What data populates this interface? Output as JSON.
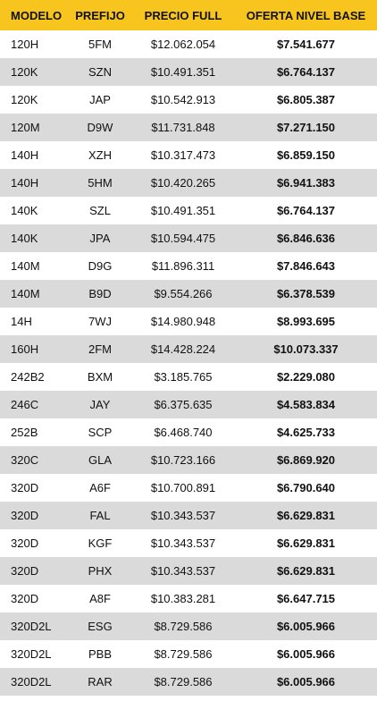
{
  "table": {
    "header": [
      "MODELO",
      "PREFIJO",
      "PRECIO FULL",
      "OFERTA NIVEL BASE"
    ],
    "rows": [
      [
        "120H",
        "5FM",
        "$12.062.054",
        "$7.541.677"
      ],
      [
        "120K",
        "SZN",
        "$10.491.351",
        "$6.764.137"
      ],
      [
        "120K",
        "JAP",
        "$10.542.913",
        "$6.805.387"
      ],
      [
        "120M",
        "D9W",
        "$11.731.848",
        "$7.271.150"
      ],
      [
        "140H",
        "XZH",
        "$10.317.473",
        "$6.859.150"
      ],
      [
        "140H",
        "5HM",
        "$10.420.265",
        "$6.941.383"
      ],
      [
        "140K",
        "SZL",
        "$10.491.351",
        "$6.764.137"
      ],
      [
        "140K",
        "JPA",
        "$10.594.475",
        "$6.846.636"
      ],
      [
        "140M",
        "D9G",
        "$11.896.311",
        "$7.846.643"
      ],
      [
        "140M",
        "B9D",
        "$9.554.266",
        "$6.378.539"
      ],
      [
        "14H",
        "7WJ",
        "$14.980.948",
        "$8.993.695"
      ],
      [
        "160H",
        "2FM",
        "$14.428.224",
        "$10.073.337"
      ],
      [
        "242B2",
        "BXM",
        "$3.185.765",
        "$2.229.080"
      ],
      [
        "246C",
        "JAY",
        "$6.375.635",
        "$4.583.834"
      ],
      [
        "252B",
        "SCP",
        "$6.468.740",
        "$4.625.733"
      ],
      [
        "320C",
        "GLA",
        "$10.723.166",
        "$6.869.920"
      ],
      [
        "320D",
        "A6F",
        "$10.700.891",
        "$6.790.640"
      ],
      [
        "320D",
        "FAL",
        "$10.343.537",
        "$6.629.831"
      ],
      [
        "320D",
        "KGF",
        "$10.343.537",
        "$6.629.831"
      ],
      [
        "320D",
        "PHX",
        "$10.343.537",
        "$6.629.831"
      ],
      [
        "320D",
        "A8F",
        "$10.383.281",
        "$6.647.715"
      ],
      [
        "320D2L",
        "ESG",
        "$8.729.586",
        "$6.005.966"
      ],
      [
        "320D2L",
        "PBB",
        "$8.729.586",
        "$6.005.966"
      ],
      [
        "320D2L",
        "RAR",
        "$8.729.586",
        "$6.005.966"
      ]
    ]
  }
}
